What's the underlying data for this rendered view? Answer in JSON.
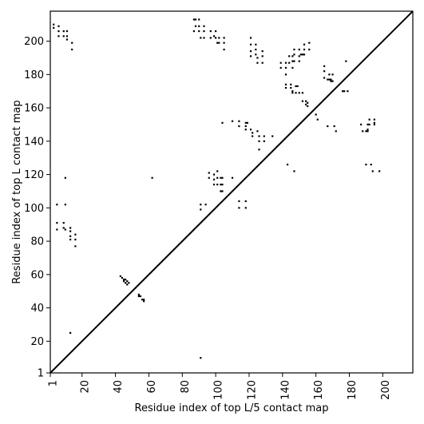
{
  "chart_data": {
    "type": "scatter",
    "title": "",
    "xlabel": "Residue index of top L/5 contact map",
    "ylabel": "Residue index of top L contact map",
    "xlim": [
      1,
      218
    ],
    "ylim": [
      1,
      218
    ],
    "xticks": [
      1,
      20,
      40,
      60,
      80,
      100,
      120,
      140,
      160,
      180,
      200
    ],
    "yticks": [
      1,
      20,
      40,
      60,
      80,
      100,
      120,
      140,
      160,
      180,
      200
    ],
    "grid": false,
    "legend": "none",
    "diagonal": {
      "from": [
        1,
        1
      ],
      "to": [
        218,
        218
      ]
    },
    "marker_color": "#000000",
    "series": [
      {
        "values": [
          [
            3,
            210
          ],
          [
            3,
            208
          ],
          [
            6,
            209
          ],
          [
            6,
            206
          ],
          [
            9,
            206
          ],
          [
            9,
            203
          ],
          [
            11,
            206
          ],
          [
            11,
            203
          ],
          [
            11,
            201
          ],
          [
            6,
            203
          ],
          [
            14,
            199
          ],
          [
            14,
            195
          ],
          [
            10,
            118
          ],
          [
            13,
            25
          ],
          [
            5,
            102
          ],
          [
            10,
            102
          ],
          [
            5,
            91
          ],
          [
            5,
            87
          ],
          [
            9,
            91
          ],
          [
            9,
            88
          ],
          [
            10,
            87
          ],
          [
            13,
            88
          ],
          [
            13,
            86
          ],
          [
            13,
            83
          ],
          [
            13,
            81
          ],
          [
            16,
            84
          ],
          [
            16,
            81
          ],
          [
            16,
            77
          ],
          [
            43,
            59
          ],
          [
            44,
            58
          ],
          [
            45,
            57
          ],
          [
            45,
            56
          ],
          [
            46,
            57
          ],
          [
            46,
            55
          ],
          [
            47,
            56
          ],
          [
            47,
            54
          ],
          [
            48,
            55
          ],
          [
            54,
            48
          ],
          [
            54,
            47
          ],
          [
            55,
            47
          ],
          [
            56,
            45
          ],
          [
            57,
            45
          ],
          [
            57,
            44
          ],
          [
            62,
            118
          ],
          [
            87,
            213
          ],
          [
            88,
            213
          ],
          [
            88,
            209
          ],
          [
            87,
            206
          ],
          [
            90,
            213
          ],
          [
            90,
            209
          ],
          [
            90,
            206
          ],
          [
            91,
            202
          ],
          [
            93,
            209
          ],
          [
            93,
            206
          ],
          [
            93,
            202
          ],
          [
            97,
            206
          ],
          [
            97,
            202
          ],
          [
            99,
            203
          ],
          [
            100,
            206
          ],
          [
            100,
            202
          ],
          [
            101,
            199
          ],
          [
            102,
            202
          ],
          [
            102,
            199
          ],
          [
            105,
            202
          ],
          [
            105,
            199
          ],
          [
            105,
            195
          ],
          [
            91,
            102
          ],
          [
            91,
            99
          ],
          [
            94,
            102
          ],
          [
            91,
            10
          ],
          [
            96,
            121
          ],
          [
            96,
            118
          ],
          [
            99,
            120
          ],
          [
            99,
            117
          ],
          [
            99,
            114
          ],
          [
            101,
            122
          ],
          [
            101,
            118
          ],
          [
            101,
            114
          ],
          [
            103,
            118
          ],
          [
            103,
            114
          ],
          [
            103,
            110
          ],
          [
            104,
            118
          ],
          [
            104,
            114
          ],
          [
            104,
            110
          ],
          [
            104,
            151
          ],
          [
            110,
            152
          ],
          [
            110,
            118
          ],
          [
            114,
            104
          ],
          [
            114,
            100
          ],
          [
            118,
            104
          ],
          [
            118,
            100
          ],
          [
            114,
            152
          ],
          [
            114,
            149
          ],
          [
            118,
            151
          ],
          [
            118,
            149
          ],
          [
            118,
            147
          ],
          [
            119,
            151
          ],
          [
            121,
            147
          ],
          [
            122,
            145
          ],
          [
            122,
            143
          ],
          [
            125,
            146
          ],
          [
            126,
            143
          ],
          [
            126,
            140
          ],
          [
            126,
            135
          ],
          [
            129,
            143
          ],
          [
            129,
            140
          ],
          [
            134,
            143
          ],
          [
            121,
            202
          ],
          [
            121,
            198
          ],
          [
            121,
            194
          ],
          [
            121,
            191
          ],
          [
            124,
            198
          ],
          [
            124,
            195
          ],
          [
            124,
            192
          ],
          [
            125,
            190
          ],
          [
            125,
            187
          ],
          [
            128,
            194
          ],
          [
            128,
            191
          ],
          [
            128,
            187
          ],
          [
            139,
            187
          ],
          [
            139,
            184
          ],
          [
            142,
            187
          ],
          [
            142,
            184
          ],
          [
            142,
            180
          ],
          [
            144,
            191
          ],
          [
            144,
            187
          ],
          [
            146,
            191
          ],
          [
            146,
            188
          ],
          [
            146,
            184
          ],
          [
            147,
            195
          ],
          [
            147,
            192
          ],
          [
            147,
            188
          ],
          [
            150,
            195
          ],
          [
            150,
            191
          ],
          [
            150,
            188
          ],
          [
            151,
            192
          ],
          [
            152,
            192
          ],
          [
            153,
            198
          ],
          [
            153,
            195
          ],
          [
            153,
            192
          ],
          [
            156,
            199
          ],
          [
            156,
            195
          ],
          [
            142,
            174
          ],
          [
            142,
            172
          ],
          [
            145,
            174
          ],
          [
            145,
            172
          ],
          [
            146,
            170
          ],
          [
            146,
            169
          ],
          [
            148,
            173
          ],
          [
            148,
            169
          ],
          [
            149,
            173
          ],
          [
            150,
            169
          ],
          [
            152,
            169
          ],
          [
            152,
            164
          ],
          [
            154,
            164
          ],
          [
            154,
            162
          ],
          [
            155,
            163
          ],
          [
            155,
            161
          ],
          [
            160,
            156
          ],
          [
            161,
            153
          ],
          [
            143,
            126
          ],
          [
            147,
            122
          ],
          [
            165,
            185
          ],
          [
            165,
            182
          ],
          [
            165,
            178
          ],
          [
            167,
            177
          ],
          [
            168,
            180
          ],
          [
            168,
            177
          ],
          [
            169,
            177
          ],
          [
            169,
            176
          ],
          [
            170,
            180
          ],
          [
            170,
            176
          ],
          [
            178,
            188
          ],
          [
            167,
            149
          ],
          [
            171,
            149
          ],
          [
            172,
            146
          ],
          [
            176,
            170
          ],
          [
            177,
            170
          ],
          [
            179,
            170
          ],
          [
            187,
            150
          ],
          [
            188,
            146
          ],
          [
            190,
            146
          ],
          [
            191,
            150
          ],
          [
            191,
            147
          ],
          [
            191,
            146
          ],
          [
            192,
            153
          ],
          [
            192,
            150
          ],
          [
            195,
            153
          ],
          [
            195,
            150
          ],
          [
            195,
            151
          ],
          [
            190,
            126
          ],
          [
            193,
            126
          ],
          [
            194,
            122
          ],
          [
            198,
            122
          ]
        ]
      }
    ]
  }
}
